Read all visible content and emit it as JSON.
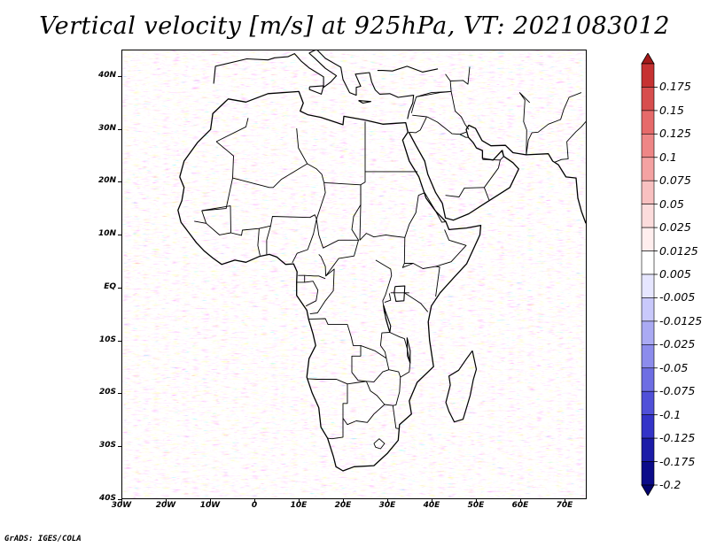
{
  "title": "Vertical velocity [m/s] at 925hPa, VT: 2021083012",
  "footer": "GrADS: IGES/COLA",
  "map": {
    "lat_ticks": [
      "40N",
      "30N",
      "20N",
      "10N",
      "EQ",
      "10S",
      "20S",
      "30S",
      "40S"
    ],
    "lon_ticks": [
      "30W",
      "20W",
      "10W",
      "0",
      "10E",
      "20E",
      "30E",
      "40E",
      "50E",
      "60E",
      "70E"
    ],
    "lat_range": [
      -40,
      45
    ],
    "lon_range": [
      -30,
      75
    ],
    "field": "vertical velocity",
    "level": "925hPa",
    "valid_time": "2021083012",
    "features": [
      "coastlines",
      "country-borders"
    ]
  },
  "colorbar": {
    "labels": [
      "0.175",
      "0.15",
      "0.125",
      "0.1",
      "0.075",
      "0.05",
      "0.025",
      "0.0125",
      "0.005",
      "-0.005",
      "-0.0125",
      "-0.025",
      "-0.05",
      "-0.075",
      "-0.1",
      "-0.125",
      "-0.175",
      "-0.2"
    ],
    "colors": [
      "#a41a1a",
      "#c63232",
      "#d74e4e",
      "#e66a6a",
      "#ee8686",
      "#f4a2a2",
      "#f8c0c0",
      "#fcdcdc",
      "#ffeeee",
      "#ffffff",
      "#e6e6ff",
      "#c9c9fb",
      "#aaaaf3",
      "#8c8cec",
      "#6e6ee3",
      "#5050d8",
      "#3434c8",
      "#1c1ca8",
      "#0c0c8a",
      "#040470"
    ]
  }
}
